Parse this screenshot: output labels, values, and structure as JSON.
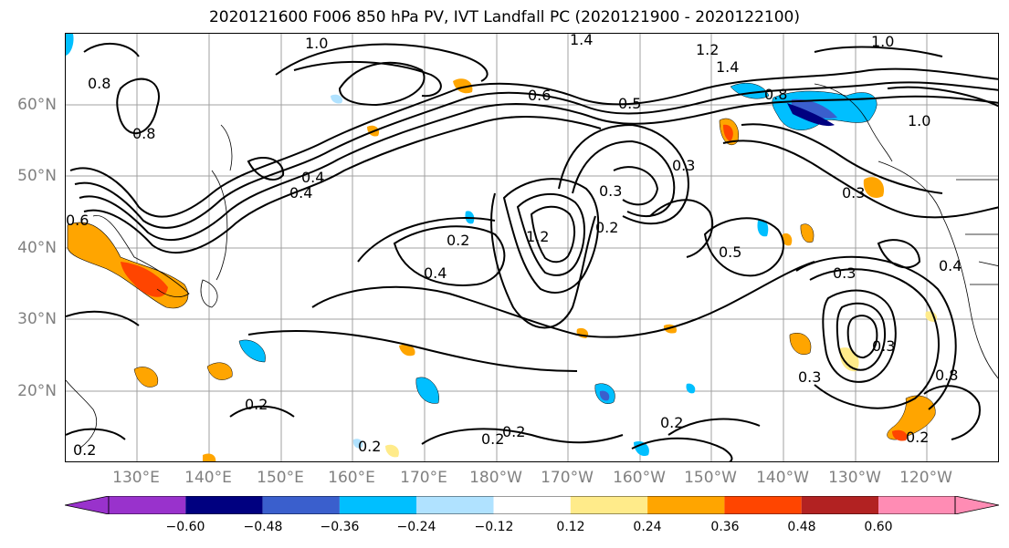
{
  "title": "2020121600 F006 850 hPa PV, IVT Landfall PC (2020121900 - 2020122100)",
  "lat_labels": [
    "60°N",
    "50°N",
    "40°N",
    "30°N",
    "20°N"
  ],
  "lon_labels": [
    "130°E",
    "140°E",
    "150°E",
    "160°E",
    "170°E",
    "180°W",
    "170°W",
    "160°W",
    "150°W",
    "140°W",
    "130°W",
    "120°W"
  ],
  "colorbar": {
    "ticks": [
      "−0.60",
      "−0.48",
      "−0.36",
      "−0.24",
      "−0.12",
      "0.12",
      "0.24",
      "0.36",
      "0.48",
      "0.60"
    ],
    "colors": [
      "#9932cc",
      "#000080",
      "#3a5fcd",
      "#00bfff",
      "#b0e2ff",
      "#ffffff",
      "#ffeb8a",
      "#ffa500",
      "#ff4500",
      "#b22222",
      "#ff8cb4"
    ],
    "extend": "both"
  },
  "contour_labels": [
    "1.0",
    "1.4",
    "1.2",
    "1.4",
    "1.0",
    "0.8",
    "1.0",
    "0.8",
    "0.6",
    "0.5",
    "0.8",
    "0.4",
    "0.4",
    "0.3",
    "0.3",
    "0.2",
    "0.2",
    "1.2",
    "0.4",
    "0.3",
    "0.4",
    "0.3",
    "0.3",
    "0.8",
    "0.3",
    "0.2",
    "0.2",
    "0.2",
    "0.2",
    "0.2",
    "0.2",
    "0.2",
    "0.5",
    "0.6"
  ],
  "colors": {
    "positive_fill": "#ffa500",
    "negative_fill": "#00bfff",
    "grid": "#a0a0a0"
  }
}
